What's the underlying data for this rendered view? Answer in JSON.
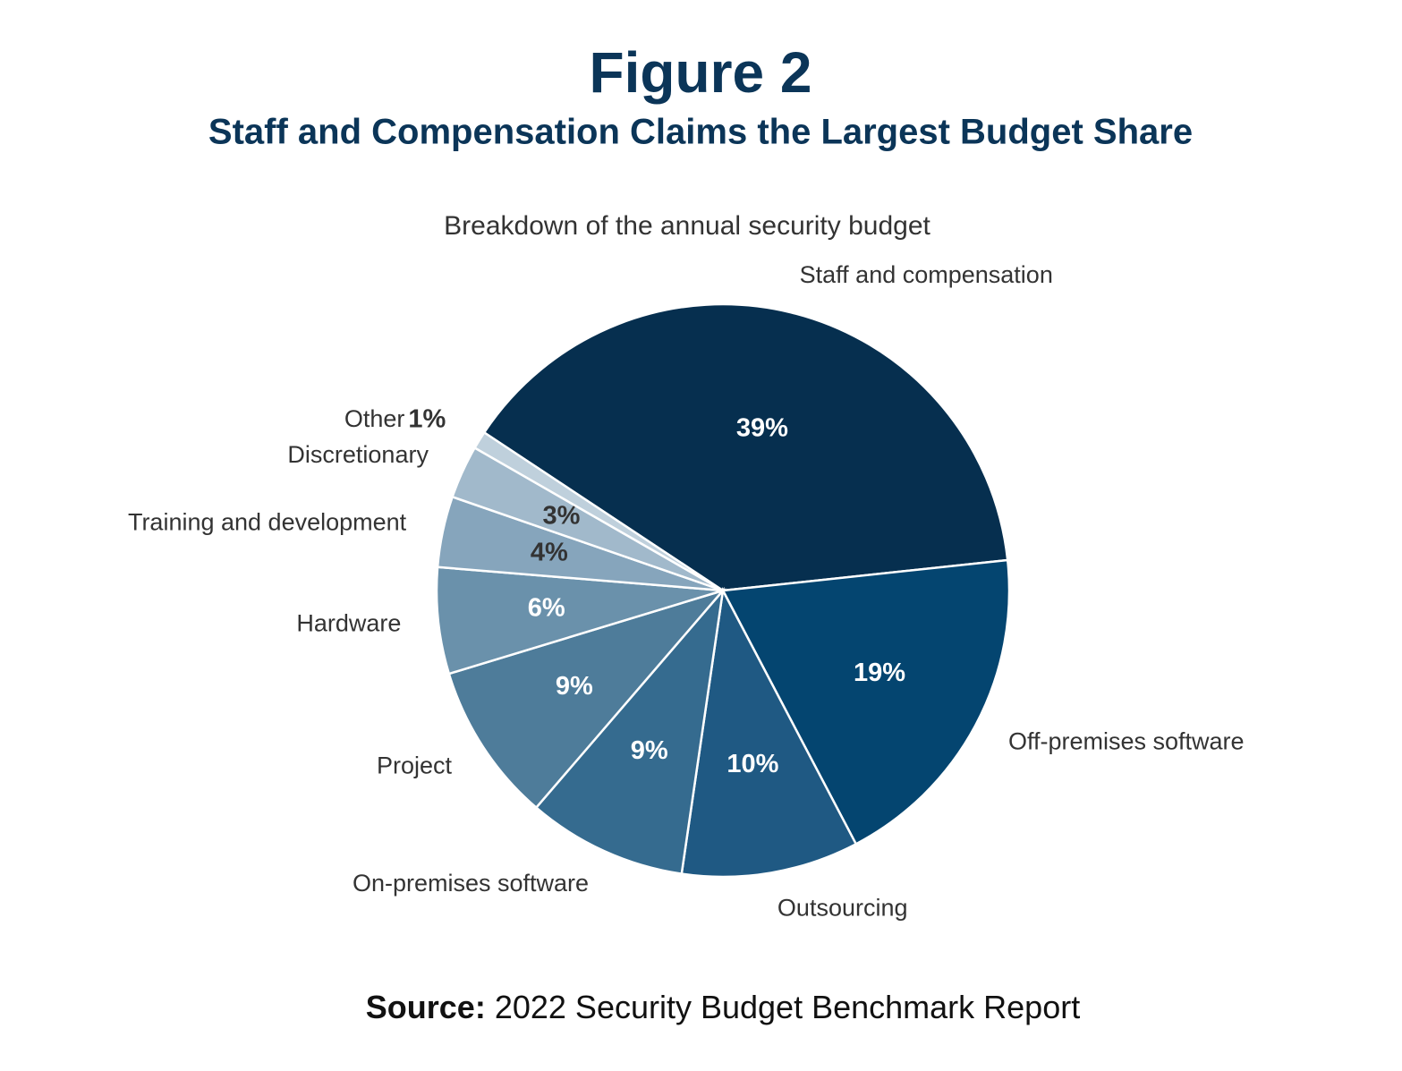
{
  "chart_data": {
    "type": "pie",
    "title": "Figure 2",
    "subtitle": "Staff and Compensation Claims the Largest Budget Share",
    "chart_title": "Breakdown of the annual security budget",
    "categories": [
      "Staff and compensation",
      "Off-premises software",
      "Outsourcing",
      "On-premises software",
      "Project",
      "Hardware",
      "Training and development",
      "Discretionary",
      "Other"
    ],
    "values": [
      39,
      19,
      10,
      9,
      9,
      6,
      4,
      3,
      1
    ],
    "value_labels": [
      "39%",
      "19%",
      "10%",
      "9%",
      "9%",
      "6%",
      "4%",
      "3%",
      "1%"
    ],
    "colors": [
      "#062f4f",
      "#044570",
      "#1f5983",
      "#356b8f",
      "#4e7c9a",
      "#6a91ab",
      "#86a5bc",
      "#a1b9cb",
      "#bfd0dc"
    ],
    "source_label": "Source:",
    "source": "2022 Security Budget Benchmark Report"
  }
}
